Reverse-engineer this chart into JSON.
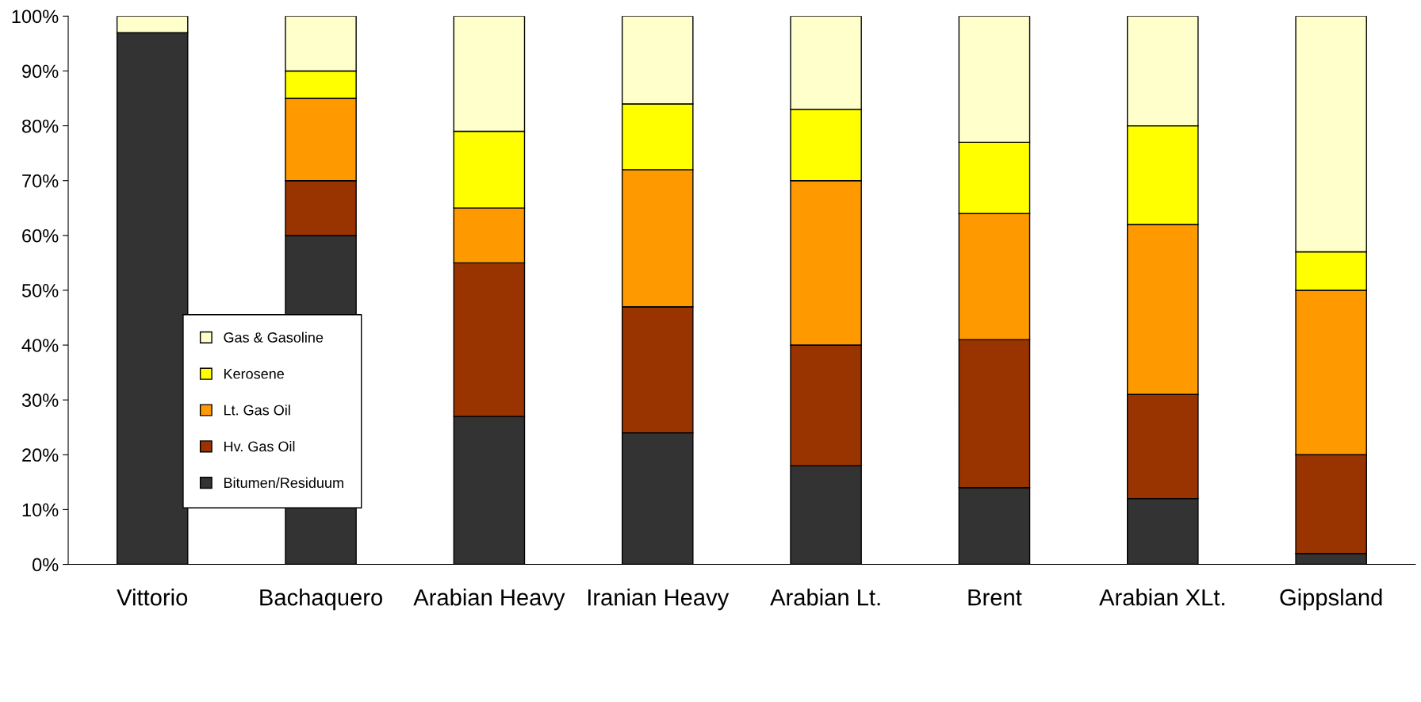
{
  "chart_data": {
    "type": "bar",
    "stacked": true,
    "categories": [
      "Vittorio",
      "Bachaquero",
      "Arabian Heavy",
      "Iranian Heavy",
      "Arabian Lt.",
      "Brent",
      "Arabian XLt.",
      "Gippsland"
    ],
    "series": [
      {
        "name": "Bitumen/Residuum",
        "color": "#333333",
        "values": [
          97,
          60,
          27,
          24,
          18,
          14,
          12,
          2
        ]
      },
      {
        "name": "Hv. Gas Oil",
        "color": "#993300",
        "values": [
          0,
          10,
          28,
          23,
          22,
          27,
          19,
          18
        ]
      },
      {
        "name": "Lt. Gas Oil",
        "color": "#ff9900",
        "values": [
          0,
          15,
          10,
          25,
          30,
          23,
          31,
          30
        ]
      },
      {
        "name": "Kerosene",
        "color": "#ffff00",
        "values": [
          0,
          5,
          14,
          12,
          13,
          13,
          18,
          7
        ]
      },
      {
        "name": "Gas & Gasoline",
        "color": "#ffffcc",
        "values": [
          3,
          10,
          21,
          16,
          17,
          23,
          20,
          43
        ]
      }
    ],
    "ylim": [
      0,
      100
    ],
    "yticks": [
      {
        "value": 0,
        "label": "0%"
      },
      {
        "value": 10,
        "label": "10%"
      },
      {
        "value": 20,
        "label": "20%"
      },
      {
        "value": 30,
        "label": "30%"
      },
      {
        "value": 40,
        "label": "40%"
      },
      {
        "value": 50,
        "label": "50%"
      },
      {
        "value": 60,
        "label": "60%"
      },
      {
        "value": 70,
        "label": "70%"
      },
      {
        "value": 80,
        "label": "80%"
      },
      {
        "value": 90,
        "label": "90%"
      },
      {
        "value": 100,
        "label": "100%"
      }
    ],
    "legend": "bottom left",
    "grid": false
  }
}
